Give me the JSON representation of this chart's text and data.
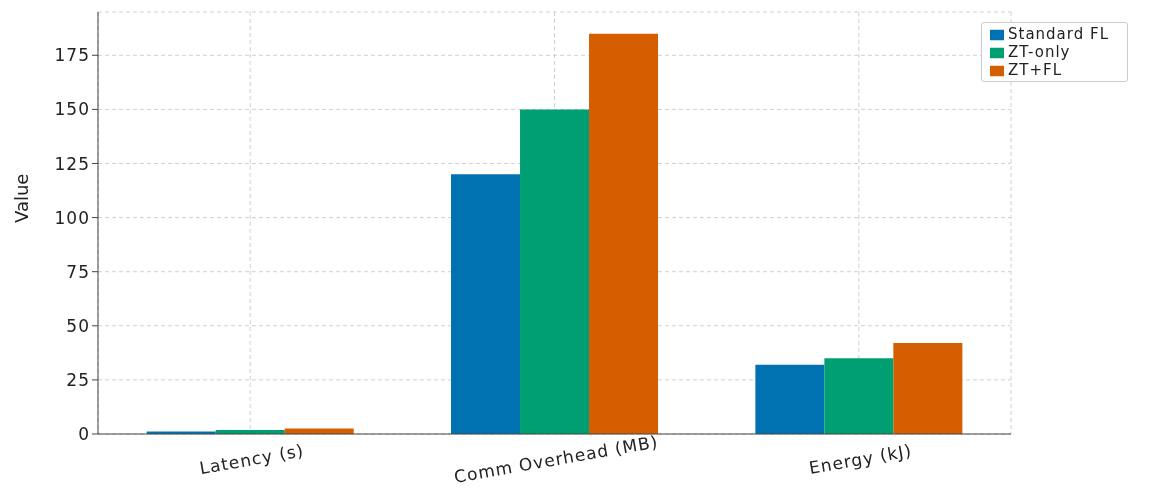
{
  "chart_data": {
    "type": "bar",
    "ylabel": "Value",
    "categories": [
      "Latency (s)",
      "Comm Overhead (MB)",
      "Energy (kJ)"
    ],
    "series": [
      {
        "name": "Standard FL",
        "color": "#0072b2",
        "values": [
          1.2,
          120,
          32
        ]
      },
      {
        "name": "ZT-only",
        "color": "#009e73",
        "values": [
          1.8,
          150,
          35
        ]
      },
      {
        "name": "ZT+FL",
        "color": "#d55e00",
        "values": [
          2.5,
          185,
          42
        ]
      }
    ],
    "ylim": [
      0,
      195
    ],
    "yticks": [
      0,
      25,
      50,
      75,
      100,
      125,
      150,
      175
    ],
    "grid": true,
    "legend": "top right"
  }
}
